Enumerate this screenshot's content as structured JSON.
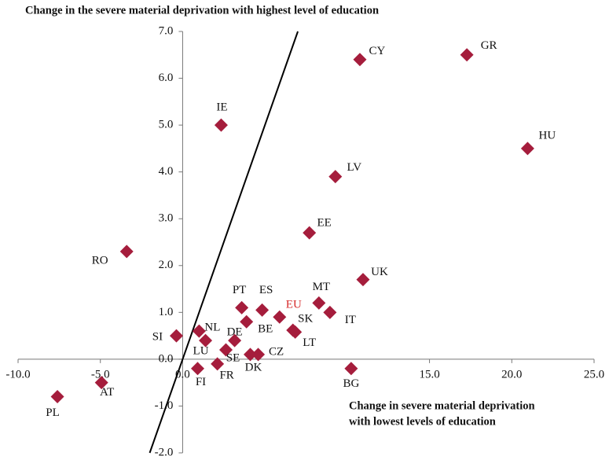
{
  "chart_data": {
    "type": "scatter",
    "y_label": "Change in the severe material deprivation with highest level of  education",
    "x_label": [
      "Change in severe material deprivation",
      "with lowest levels of education"
    ],
    "labels": [
      "CY",
      "GR",
      "HU",
      "IE",
      "LV",
      "EE",
      "RO",
      "UK",
      "MT",
      "IT",
      "PT",
      "ES",
      "EU",
      "BE",
      "SK",
      "LT",
      "NL",
      "SI",
      "LU",
      "DE",
      "SE",
      "DK",
      "CZ",
      "FR",
      "FI",
      "BG",
      "PL",
      "AT"
    ],
    "x": [
      10.77,
      17.27,
      20.96,
      2.34,
      9.28,
      7.7,
      -3.4,
      10.96,
      8.28,
      8.95,
      3.59,
      4.83,
      5.89,
      3.88,
      6.7,
      6.84,
      1.0,
      -0.38,
      1.39,
      3.16,
      2.63,
      4.11,
      4.59,
      2.11,
      0.91,
      10.24,
      -7.61,
      -4.93
    ],
    "y": [
      6.4,
      6.5,
      4.5,
      5.0,
      3.9,
      2.7,
      2.3,
      1.7,
      1.2,
      1.0,
      1.1,
      1.05,
      0.9,
      0.8,
      0.62,
      0.58,
      0.6,
      0.5,
      0.4,
      0.4,
      0.2,
      0.1,
      0.1,
      -0.1,
      -0.2,
      -0.2,
      -0.8,
      -0.5
    ],
    "color": "#a51d3c",
    "highlight": {
      "index": 12,
      "color": "#d62a2a"
    },
    "reference_line": {
      "x": [
        -2,
        7
      ],
      "y": [
        -2,
        7
      ],
      "color": "#000000"
    },
    "xlim": [
      -10,
      25
    ],
    "ylim": [
      -2,
      7
    ],
    "xticks": [
      {
        "value": -10,
        "label": "-10.0"
      },
      {
        "value": -5,
        "label": "-5.0"
      },
      {
        "value": 0,
        "label": "0.0"
      },
      {
        "value": 15,
        "label": "15.0"
      },
      {
        "value": 20,
        "label": "20.0"
      },
      {
        "value": 25,
        "label": "25.0"
      }
    ],
    "yticks": [
      {
        "value": -2,
        "label": "-2.0"
      },
      {
        "value": -1,
        "label": "-1.0"
      },
      {
        "value": 0,
        "label": "0.0"
      },
      {
        "value": 1,
        "label": "1.0"
      },
      {
        "value": 2,
        "label": "2.0"
      },
      {
        "value": 3,
        "label": "3.0"
      },
      {
        "value": 4,
        "label": "4.0"
      },
      {
        "value": 5,
        "label": "5.0"
      },
      {
        "value": 6,
        "label": "6.0"
      },
      {
        "value": 7,
        "label": "7.0"
      }
    ]
  }
}
